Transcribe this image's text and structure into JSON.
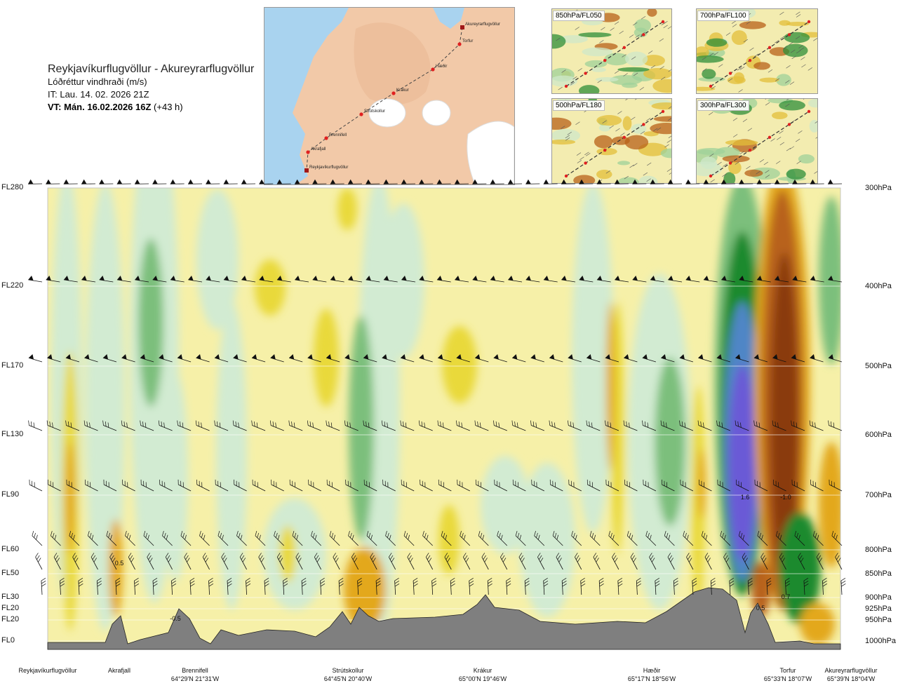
{
  "title": {
    "route": "Reykjavíkurflugvöllur - Akureyrarflugvöllur",
    "variable": "Lóðréttur vindhraði (m/s)",
    "issue_time": "IT: Lau. 14. 02. 2026 21Z",
    "valid_time": "VT: Mán. 16.02.2026 16Z",
    "lead": "(+43 h)"
  },
  "route_map": {
    "points": [
      {
        "name": "Akureyrarflugvöllur"
      },
      {
        "name": "Torfur"
      },
      {
        "name": "Hæðir"
      },
      {
        "name": "Krákur"
      },
      {
        "name": "Strútskollur"
      },
      {
        "name": "Brennifell"
      },
      {
        "name": "Akrafjall"
      },
      {
        "name": "Reykjavíkurflugvöllur"
      }
    ],
    "colors": {
      "sea": "#a9d3ef",
      "land": "#f4cfb0",
      "ice": "#ffffff",
      "route": "#444444",
      "point": "#e02020"
    }
  },
  "level_maps": [
    {
      "label": "850hPa/FL050"
    },
    {
      "label": "700hPa/FL100"
    },
    {
      "label": "500hPa/FL180"
    },
    {
      "label": "300hPa/FL300"
    }
  ],
  "chart_data": {
    "type": "heatmap",
    "description_variable": "vertical wind speed (m/s) cross-section",
    "left_axis_levels": [
      "FL280",
      "FL220",
      "FL170",
      "FL130",
      "FL90",
      "FL60",
      "FL50",
      "FL30",
      "FL20",
      "FL20",
      "FL0"
    ],
    "right_axis_levels": [
      "300hPa",
      "400hPa",
      "500hPa",
      "600hPa",
      "700hPa",
      "800hPa",
      "850hPa",
      "900hPa",
      "925hPa",
      "950hPa",
      "1000hPa"
    ],
    "locations": [
      {
        "name": "Reykjavíkurflugvöllur",
        "coords": ""
      },
      {
        "name": "Akrafjall",
        "coords": ""
      },
      {
        "name": "Brennifell",
        "coords": "64°29'N 21°31'W"
      },
      {
        "name": "Strútskollur",
        "coords": "64°45'N 20°40'W"
      },
      {
        "name": "Krákur",
        "coords": "65°00'N 19°46'W"
      },
      {
        "name": "Hæðir",
        "coords": "65°17'N 18°56'W"
      },
      {
        "name": "Torfur",
        "coords": "65°33'N 18°07'W"
      },
      {
        "name": "Akureyrarflugvöllur",
        "coords": "65°39'N 18°04'W"
      }
    ],
    "annotations": [
      "-0.5",
      "0.5",
      "1.6",
      "-1.0",
      "0.7",
      "0.5"
    ],
    "extremes": {
      "max_updraft": 1.6,
      "max_downdraft": -1.0
    },
    "colors": {
      "terrain": "#7f7f7f",
      "neutral": "#f6f0a8",
      "weak_up": "#d2ebd2",
      "moderate_up": "#7cbf7c",
      "strong_up": "#1e8a2e",
      "very_strong_up": "#4f86c6",
      "extreme_up": "#6a5ad6",
      "weak_down": "#e9d93a",
      "moderate_down": "#e3a81f",
      "strong_down": "#b8621a",
      "extreme_down": "#8a3a10"
    }
  }
}
